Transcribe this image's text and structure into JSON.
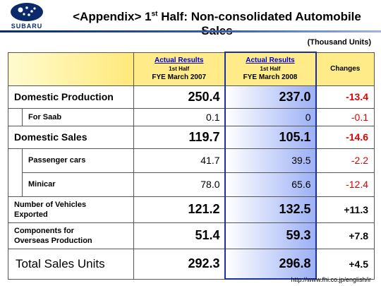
{
  "brand": {
    "name": "SUBARU"
  },
  "title": {
    "prefix": "<Appendix> 1",
    "sup": "st",
    "suffix": " Half: Non-consolidated Automobile Sales"
  },
  "unit_note": "(Thousand Units)",
  "columns": {
    "col2007": {
      "line1": "Actual Results",
      "line2": "1st Half",
      "line3": "FYE March 2007"
    },
    "col2008": {
      "line1": "Actual Results",
      "line2": "1st Half",
      "line3": "FYE March 2008"
    },
    "changes": "Changes"
  },
  "rows": {
    "domestic_production": {
      "label": "Domestic Production",
      "v2007": "250.4",
      "v2008": "237.0",
      "change": "-13.4"
    },
    "for_saab": {
      "label": "For Saab",
      "v2007": "0.1",
      "v2008": "0",
      "change": "-0.1"
    },
    "domestic_sales": {
      "label": "Domestic Sales",
      "v2007": "119.7",
      "v2008": "105.1",
      "change": "-14.6"
    },
    "passenger_cars": {
      "label": "Passenger cars",
      "v2007": "41.7",
      "v2008": "39.5",
      "change": "-2.2"
    },
    "minicar": {
      "label": "Minicar",
      "v2007": "78.0",
      "v2008": "65.6",
      "change": "-12.4"
    },
    "vehicles_exported": {
      "label_line1": "Number of Vehicles",
      "label_line2": "Exported",
      "v2007": "121.2",
      "v2008": "132.5",
      "change": "+11.3"
    },
    "components_overseas": {
      "label_line1": "Components for",
      "label_line2": "Overseas Production",
      "v2007": "51.4",
      "v2008": "59.3",
      "change": "+7.8"
    },
    "total_sales": {
      "label": "Total Sales Units",
      "v2007": "292.3",
      "v2008": "296.8",
      "change": "+4.5"
    }
  },
  "footer": {
    "url": "http://www.fhi.co.jp/english/ir"
  },
  "colors": {
    "accent_blue": "#1a2fa0",
    "header_yellow": "#ffec88",
    "negative_red": "#e00000"
  }
}
